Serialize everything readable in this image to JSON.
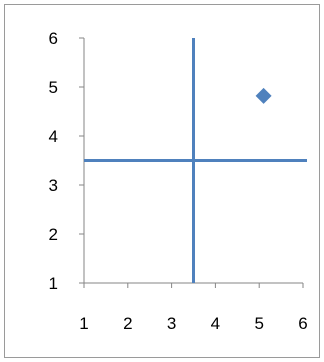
{
  "chart_data": {
    "type": "scatter",
    "title": "",
    "xlabel": "",
    "ylabel": "",
    "xlim": [
      1,
      6
    ],
    "ylim": [
      1,
      6
    ],
    "x_ticks": [
      1,
      2,
      3,
      4,
      5,
      6
    ],
    "y_ticks": [
      1,
      2,
      3,
      4,
      5,
      6
    ],
    "x_tick_labels": [
      "1",
      "2",
      "3",
      "4",
      "5",
      "6"
    ],
    "y_tick_labels": [
      "1",
      "2",
      "3",
      "4",
      "5",
      "6"
    ],
    "grid": false,
    "legend": "none",
    "series": [
      {
        "points": [
          {
            "x": 5.1,
            "y": 4.82
          }
        ],
        "color": "#4f81bd",
        "marker": "diamond"
      }
    ],
    "reference_lines": [
      {
        "orientation": "vertical",
        "value": 3.5,
        "color": "#4f81bd"
      },
      {
        "orientation": "horizontal",
        "value": 3.5,
        "color": "#4f81bd"
      }
    ],
    "axis_color": "#868686"
  }
}
